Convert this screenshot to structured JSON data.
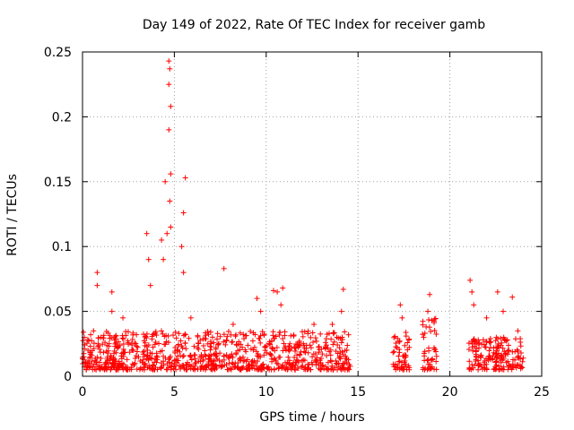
{
  "chart_data": {
    "type": "scatter",
    "title": "Day 149 of 2022, Rate Of TEC Index for receiver gamb",
    "xlabel": "GPS time / hours",
    "ylabel": "ROTI / TECUs",
    "xlim": [
      0,
      25
    ],
    "ylim": [
      0,
      0.25
    ],
    "xticks": [
      0,
      5,
      10,
      15,
      20,
      25
    ],
    "xtick_labels": [
      "0",
      "5",
      "10",
      "15",
      "20",
      "25"
    ],
    "yticks": [
      0,
      0.05,
      0.1,
      0.15,
      0.2,
      0.25
    ],
    "ytick_labels": [
      "0",
      "0.05",
      "0.1",
      "0.15",
      "0.2",
      "0.25"
    ],
    "grid": true,
    "marker": "+",
    "color": "#ff0000",
    "points": [
      [
        0.1,
        0.03
      ],
      [
        0.3,
        0.02
      ],
      [
        0.6,
        0.035
      ],
      [
        0.8,
        0.08
      ],
      [
        0.8,
        0.07
      ],
      [
        1.0,
        0.03
      ],
      [
        1.6,
        0.065
      ],
      [
        1.6,
        0.05
      ],
      [
        2.2,
        0.045
      ],
      [
        3.5,
        0.11
      ],
      [
        3.6,
        0.09
      ],
      [
        3.7,
        0.07
      ],
      [
        4.3,
        0.105
      ],
      [
        4.4,
        0.09
      ],
      [
        4.5,
        0.15
      ],
      [
        4.6,
        0.11
      ],
      [
        4.7,
        0.243
      ],
      [
        4.75,
        0.237
      ],
      [
        4.7,
        0.225
      ],
      [
        4.8,
        0.208
      ],
      [
        4.7,
        0.19
      ],
      [
        4.8,
        0.156
      ],
      [
        4.75,
        0.135
      ],
      [
        4.8,
        0.115
      ],
      [
        5.4,
        0.1
      ],
      [
        5.5,
        0.08
      ],
      [
        5.6,
        0.153
      ],
      [
        5.5,
        0.126
      ],
      [
        5.9,
        0.045
      ],
      [
        7.7,
        0.083
      ],
      [
        8.2,
        0.04
      ],
      [
        9.5,
        0.06
      ],
      [
        9.7,
        0.05
      ],
      [
        10.4,
        0.066
      ],
      [
        10.6,
        0.065
      ],
      [
        10.9,
        0.068
      ],
      [
        10.8,
        0.055
      ],
      [
        12.6,
        0.04
      ],
      [
        13.6,
        0.04
      ],
      [
        14.2,
        0.067
      ],
      [
        14.1,
        0.05
      ],
      [
        17.3,
        0.055
      ],
      [
        17.4,
        0.045
      ],
      [
        18.9,
        0.063
      ],
      [
        18.8,
        0.05
      ],
      [
        21.1,
        0.074
      ],
      [
        21.2,
        0.065
      ],
      [
        21.3,
        0.055
      ],
      [
        22.0,
        0.045
      ],
      [
        22.6,
        0.065
      ],
      [
        22.9,
        0.05
      ],
      [
        23.4,
        0.061
      ],
      [
        23.7,
        0.035
      ]
    ],
    "dense_bands": [
      {
        "x_range": [
          0,
          14.6
        ],
        "y_range": [
          0.005,
          0.035
        ]
      },
      {
        "x_range": [
          16.9,
          17.8
        ],
        "y_range": [
          0.005,
          0.035
        ]
      },
      {
        "x_range": [
          18.5,
          19.3
        ],
        "y_range": [
          0.005,
          0.045
        ]
      },
      {
        "x_range": [
          21.0,
          24.0
        ],
        "y_range": [
          0.005,
          0.03
        ]
      }
    ]
  }
}
